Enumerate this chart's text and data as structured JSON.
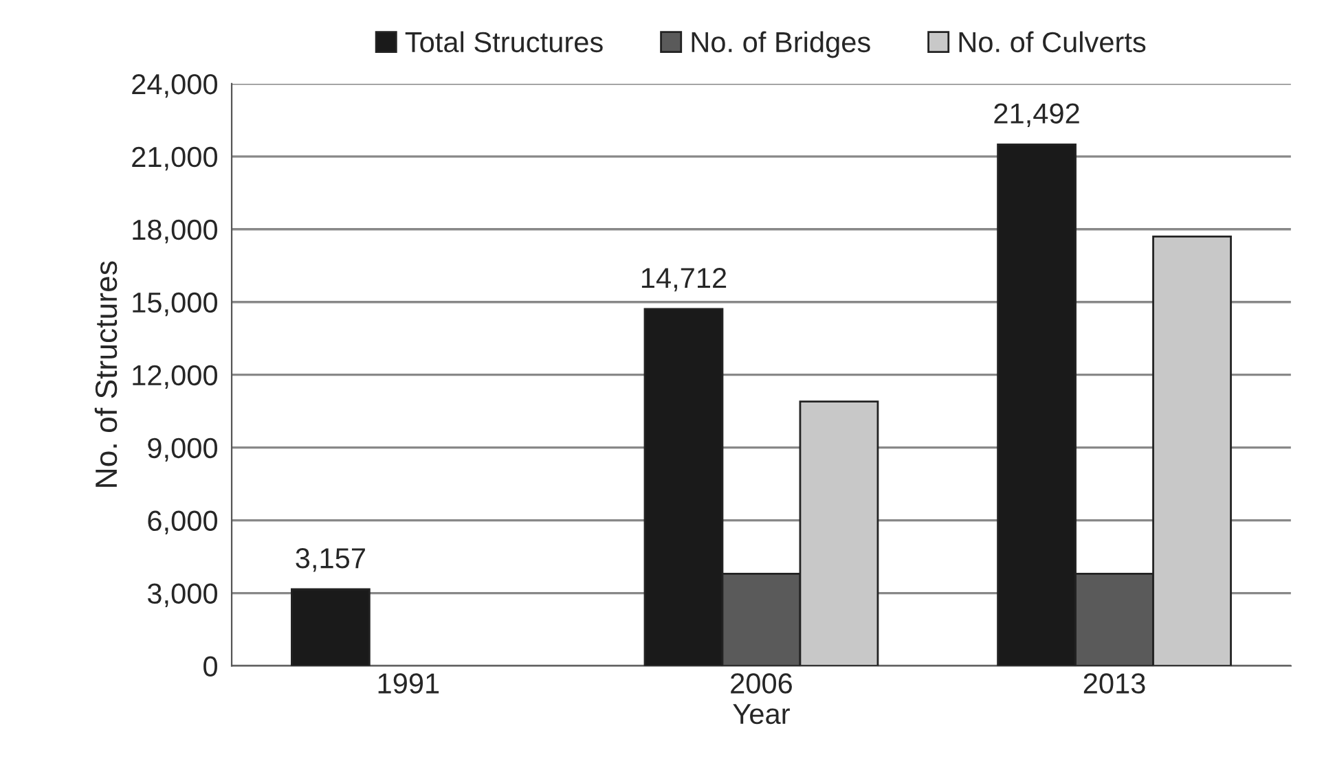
{
  "chart_data": {
    "type": "bar",
    "xlabel": "Year",
    "ylabel": "No. of Structures",
    "categories": [
      "1991",
      "2006",
      "2013"
    ],
    "series": [
      {
        "name": "Total Structures",
        "color": "#1a1a1a",
        "values": [
          3157,
          14712,
          21492
        ],
        "value_labels": [
          "3,157",
          "14,712",
          "21,492"
        ]
      },
      {
        "name": "No. of Bridges",
        "color": "#5a5a5a",
        "values": [
          null,
          3800,
          3800
        ]
      },
      {
        "name": "No. of Culverts",
        "color": "#c8c8c8",
        "values": [
          null,
          10900,
          17700
        ]
      }
    ],
    "ylim": [
      0,
      24000
    ],
    "yticks": [
      {
        "value": 0,
        "label": "0"
      },
      {
        "value": 3000,
        "label": "3,000"
      },
      {
        "value": 6000,
        "label": "6,000"
      },
      {
        "value": 9000,
        "label": "9,000"
      },
      {
        "value": 12000,
        "label": "12,000"
      },
      {
        "value": 15000,
        "label": "15,000"
      },
      {
        "value": 18000,
        "label": "18,000"
      },
      {
        "value": 21000,
        "label": "21,000"
      },
      {
        "value": 24000,
        "label": "24,000"
      }
    ],
    "grid": "y",
    "legend": "top"
  }
}
